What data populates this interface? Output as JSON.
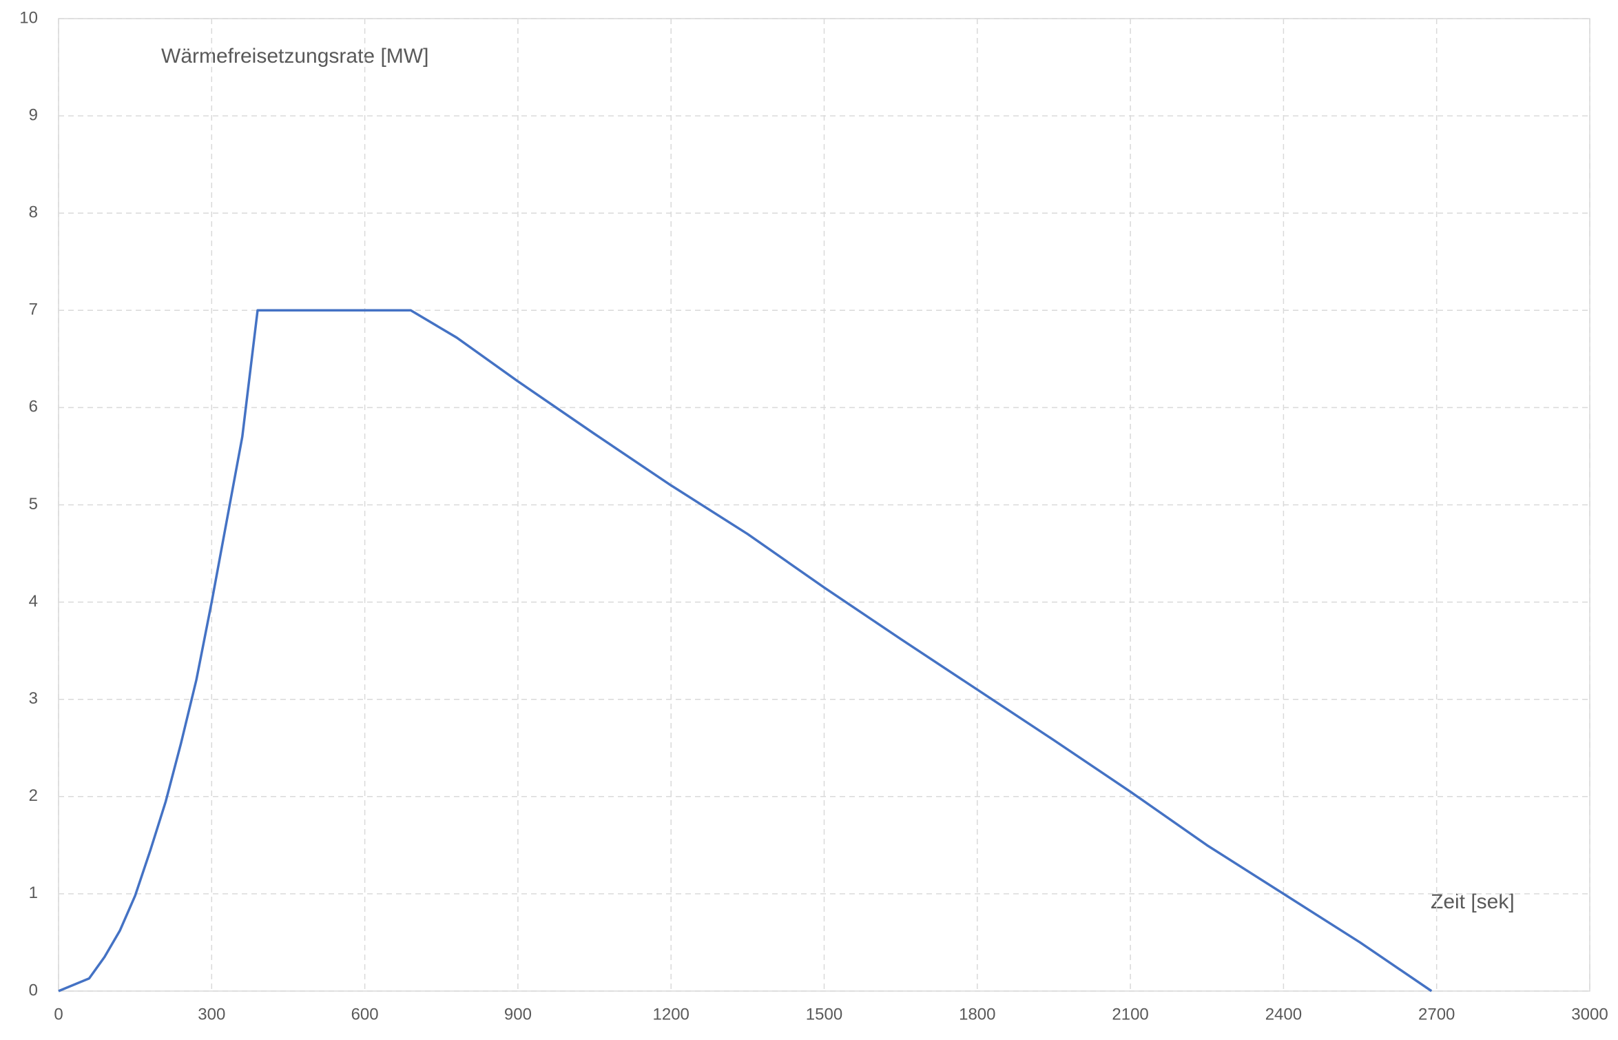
{
  "chart_data": {
    "type": "line",
    "annotations": [
      "Wärmefreisetzungsrate  [MW]",
      "Zeit  [sek]"
    ],
    "x": [
      0,
      60,
      90,
      120,
      150,
      180,
      210,
      240,
      270,
      300,
      330,
      360,
      390,
      690,
      780,
      900,
      1050,
      1200,
      1350,
      1500,
      1650,
      1800,
      1950,
      2100,
      2250,
      2400,
      2550,
      2690
    ],
    "values": [
      0,
      0.13,
      0.35,
      0.62,
      0.98,
      1.45,
      1.95,
      2.55,
      3.2,
      4.0,
      4.85,
      5.7,
      7.0,
      7.0,
      6.72,
      6.27,
      5.73,
      5.2,
      4.7,
      4.15,
      3.62,
      3.1,
      2.58,
      2.05,
      1.5,
      1.0,
      0.5,
      0
    ],
    "color": "#4472c4",
    "xlim": [
      0,
      3000
    ],
    "xticks": [
      0,
      300,
      600,
      900,
      1200,
      1500,
      1800,
      2100,
      2400,
      2700,
      3000
    ],
    "ylim": [
      0,
      10
    ],
    "yticks": [
      0,
      1,
      2,
      3,
      4,
      5,
      6,
      7,
      8,
      9,
      10
    ],
    "grid": true
  }
}
